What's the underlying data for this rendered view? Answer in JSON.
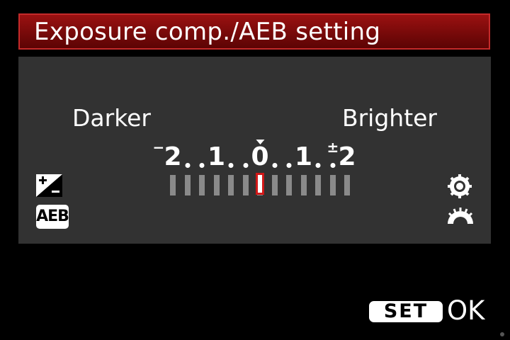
{
  "title": "Exposure comp./AEB setting",
  "scale": {
    "darker_label": "Darker",
    "brighter_label": "Brighter",
    "tick_labels": [
      "2",
      "1",
      "0",
      "1",
      "2"
    ],
    "minus_sign": "−",
    "plus_sign": "±",
    "min": -2,
    "max": 2,
    "step_fraction": "1/3",
    "current_value": 0
  },
  "icons": {
    "exposure_comp": "exposure-compensation-icon",
    "aeb": "AEB",
    "quick_dial": "quick-control-dial-icon",
    "main_dial": "main-dial-icon"
  },
  "footer": {
    "set_label": "SET",
    "ok_label": "OK"
  },
  "colors": {
    "title_bar": "#8a0d0d",
    "title_border": "#c42a2a",
    "panel": "#323232",
    "marker": "#d01818",
    "tick": "#8a8a8a"
  }
}
